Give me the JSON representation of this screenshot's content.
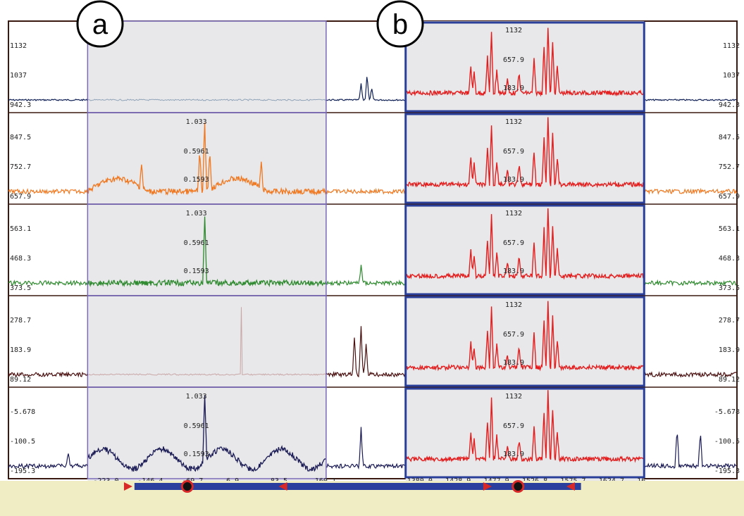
{
  "markers": [
    "a",
    "b"
  ],
  "colors": {
    "background": "#ffffff",
    "panel_border": "#3a1a10",
    "selection_fill": "#e8e8ea",
    "selection_a_border": "#7a6ab8",
    "selection_b_border": "#2a3f9a",
    "slider_track": "#f0ecc4",
    "slider_bar": "#2b3f9e",
    "slider_handle": "#d82828",
    "highlight_red": "#e41e1e"
  },
  "chart_data": {
    "type": "line",
    "x_axis_ticks": [
      "0",
      "119",
      "238",
      "358",
      "477",
      "597",
      "716",
      "836",
      "955",
      "1075",
      "1194",
      "1314",
      "1433",
      "1553",
      "1672",
      "1791",
      "1911",
      "2030",
      "2150"
    ],
    "x_range": [
      0,
      2190
    ],
    "bottom_value": "-290.1",
    "lanes": [
      {
        "name": "lane-1",
        "color": "#0e1f55",
        "y_labels_outer": [
          "1132",
          "1037",
          "942.3"
        ],
        "y_labels_a": [],
        "y_labels_b": [
          "1132",
          "657.9",
          "183.9"
        ],
        "peaks": [
          [
            1060,
            0.25
          ],
          [
            1078,
            0.4
          ],
          [
            1092,
            0.18
          ]
        ]
      },
      {
        "name": "lane-2",
        "color": "#f07820",
        "y_labels_outer": [
          "847.5",
          "752.7",
          "657.9"
        ],
        "y_labels_a": [
          "1.033",
          "0.5961",
          "0.1593"
        ],
        "y_labels_b": [
          "1132",
          "657.9",
          "183.9"
        ],
        "peaks": [
          [
            590,
            1.0
          ],
          [
            575,
            0.6
          ],
          [
            605,
            0.55
          ],
          [
            400,
            0.35
          ],
          [
            760,
            0.35
          ]
        ]
      },
      {
        "name": "lane-3",
        "color": "#2e8a2e",
        "y_labels_outer": [
          "563.1",
          "468.3",
          "373.5"
        ],
        "y_labels_a": [
          "1.033",
          "0.5961",
          "0.1593"
        ],
        "y_labels_b": [
          "1132",
          "657.9",
          "183.9"
        ],
        "peaks": [
          [
            590,
            0.95
          ],
          [
            1060,
            0.3
          ]
        ]
      },
      {
        "name": "lane-4",
        "color": "#4a1010",
        "y_labels_outer": [
          "278.7",
          "183.9",
          "89.12"
        ],
        "y_labels_a": [],
        "y_labels_b": [
          "1132",
          "657.9",
          "183.9"
        ],
        "peaks": [
          [
            1040,
            0.6
          ],
          [
            1060,
            0.75
          ],
          [
            1075,
            0.5
          ],
          [
            700,
            0.95
          ]
        ]
      },
      {
        "name": "lane-5",
        "color": "#1a1a55",
        "y_labels_outer": [
          "-5.678",
          "-100.5",
          "-195.3"
        ],
        "y_labels_a": [
          "1.033",
          "0.5961",
          "0.1593"
        ],
        "y_labels_b": [
          "1132",
          "657.9",
          "183.9"
        ],
        "peaks": [
          [
            590,
            0.95
          ],
          [
            1060,
            0.6
          ],
          [
            2010,
            0.6
          ],
          [
            2080,
            0.55
          ],
          [
            180,
            0.2
          ]
        ]
      }
    ],
    "selection_a": {
      "x_range": [
        238,
        955
      ],
      "ticks": [
        "-223.0",
        "-146.4",
        "-69.7",
        "6.9",
        "83.5",
        "160.1"
      ]
    },
    "selection_b": {
      "x_range": [
        1194,
        1911
      ],
      "ticks": [
        "1380.0",
        "1428.9",
        "1477.9",
        "1526.8",
        "1575.7",
        "1624.7",
        "16"
      ]
    },
    "slider_range": [
      400,
      1700
    ],
    "slider_position": 597
  }
}
